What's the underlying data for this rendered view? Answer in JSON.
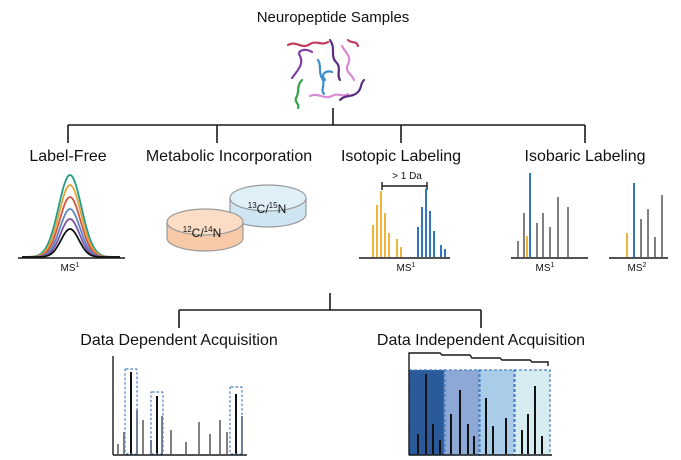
{
  "title": "Neuropeptide Samples",
  "strategies": {
    "label_free": "Label-Free",
    "metabolic": "Metabolic Incorporation",
    "isotopic": "Isotopic Labeling",
    "isobaric": "Isobaric Labeling"
  },
  "dish_labels": {
    "light": {
      "sup1": "12",
      "el1": "C/",
      "sup2": "14",
      "el2": "N"
    },
    "heavy": {
      "sup1": "13",
      "el1": "C/",
      "sup2": "15",
      "el2": "N"
    }
  },
  "mass_shift_label": "> 1 Da",
  "ms1_label": {
    "base": "MS",
    "sup": "1"
  },
  "ms2_label": {
    "base": "MS",
    "sup": "2"
  },
  "acquisition": {
    "dda": "Data Dependent Acquisition",
    "dia": "Data Independent Acquisition"
  },
  "colors": {
    "orange": "#f0b33c",
    "blue": "#2f78bf",
    "gray": "#808080",
    "line": "#1a1a1a",
    "box_dashed": "#4a7fc4",
    "dia_windows": [
      "#2a5a9a",
      "#8da8d4",
      "#a9cde9",
      "#d6ecf1"
    ],
    "gauss": [
      "#1f9e89",
      "#e6a23c",
      "#d2553d",
      "#5b86c6",
      "#7a54a8",
      "#111111"
    ],
    "peptide_strands": [
      "#c23a5a",
      "#7a3f9f",
      "#3b8fd0",
      "#2fa24a",
      "#d88ad4",
      "#5a2c82"
    ],
    "dish_light": "#f7c9a6",
    "dish_heavy": "#cfe6f2"
  }
}
